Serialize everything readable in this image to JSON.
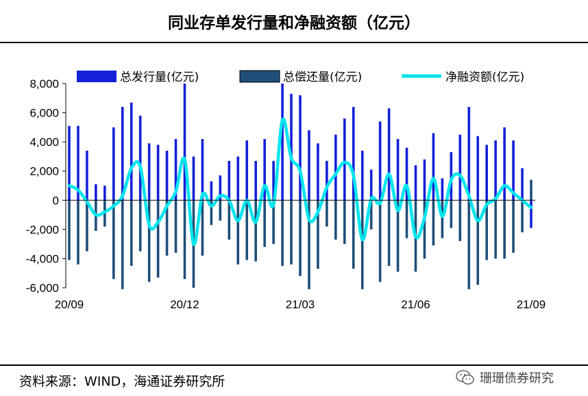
{
  "title": "同业存单发行量和净融资额（亿元）",
  "source": "资料来源：WIND，海通证券研究所",
  "watermark": "珊珊债券研究",
  "chart_data": {
    "type": "bar",
    "ylim": [
      -6000,
      8000
    ],
    "yticks": [
      8000,
      6000,
      4000,
      2000,
      0,
      -2000,
      -4000,
      -6000
    ],
    "ytick_labels": [
      "8,000",
      "6,000",
      "4,000",
      "2,000",
      "0",
      "-2,000",
      "-4,000",
      "-6,000"
    ],
    "xtick_labels": [
      "20/09",
      "20/12",
      "21/03",
      "21/06",
      "21/09"
    ],
    "xtick_index": [
      0,
      13,
      26,
      39,
      52
    ],
    "grid": false,
    "legend_position": "top",
    "colors": {
      "issue": "#1420D8",
      "repay": "#1F4E79",
      "net": "#00E5EE"
    },
    "series": [
      {
        "name": "总发行量(亿元)",
        "kind": "bar",
        "values": [
          5100,
          5100,
          3400,
          1100,
          1000,
          5000,
          6400,
          6700,
          5800,
          3900,
          3800,
          3400,
          4200,
          8000,
          3000,
          4200,
          1300,
          1700,
          2700,
          3000,
          4100,
          2700,
          4200,
          2700,
          8000,
          7300,
          7200,
          4800,
          3900,
          2700,
          4500,
          5600,
          6400,
          3400,
          2100,
          5400,
          6300,
          4200,
          3600,
          2400,
          2800,
          4600,
          1500,
          3300,
          4500,
          6400,
          4400,
          3800,
          4100,
          5000,
          4100,
          2200,
          -1900
        ]
      },
      {
        "name": "总偿还量(亿元)",
        "kind": "bar",
        "values": [
          -4100,
          -4400,
          -3500,
          -2100,
          -1800,
          -5400,
          -6100,
          -4500,
          -3500,
          -5600,
          -5300,
          -3800,
          -3600,
          -5400,
          -6000,
          -3800,
          -1700,
          -1400,
          -2700,
          -4400,
          -4100,
          -4200,
          -3200,
          -3000,
          -4500,
          -4400,
          -5200,
          -6100,
          -4700,
          -1800,
          -2700,
          -3000,
          -4700,
          -6100,
          -2000,
          -5600,
          -4500,
          -4900,
          -2600,
          -4900,
          -4000,
          -3100,
          -2600,
          -1900,
          -2800,
          -6100,
          -5800,
          -4100,
          -4000,
          -4000,
          -3600,
          -2200,
          1400
        ]
      },
      {
        "name": "净融资额(亿元)",
        "kind": "line",
        "values": [
          1000,
          700,
          -100,
          -1000,
          -800,
          -400,
          300,
          2200,
          2300,
          -1700,
          -1500,
          -400,
          600,
          2800,
          -3000,
          400,
          -400,
          300,
          0,
          -1400,
          0,
          -1500,
          1000,
          -300,
          5500,
          2900,
          2000,
          -1300,
          -800,
          900,
          1800,
          2600,
          1700,
          -2700,
          100,
          -200,
          1800,
          -700,
          1000,
          -2500,
          -1200,
          1500,
          -1100,
          1400,
          1700,
          300,
          -1400,
          -300,
          100,
          1000,
          500,
          0,
          -500
        ]
      }
    ]
  }
}
